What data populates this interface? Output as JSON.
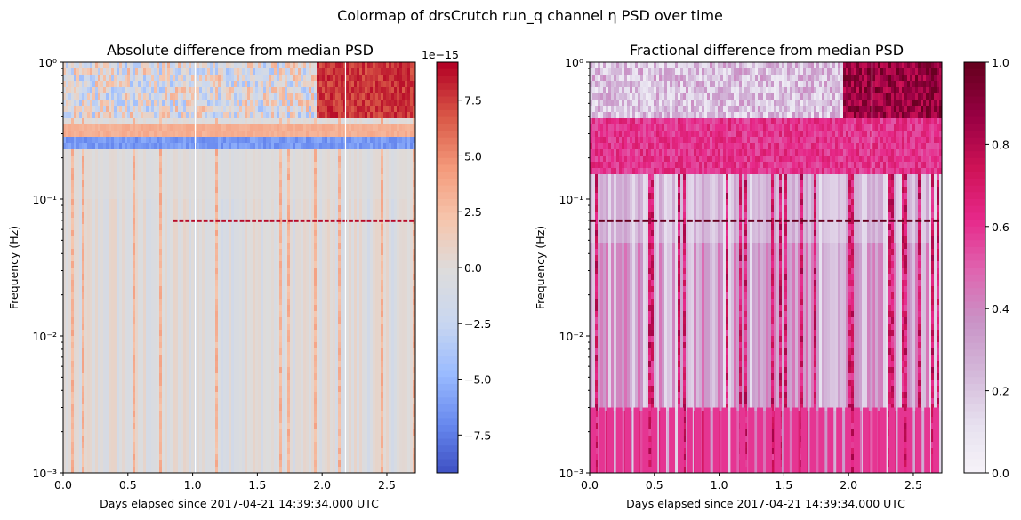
{
  "suptitle": "Colormap of drsCrutch run_q channel η PSD over time",
  "colors": {
    "coolwarm": [
      "#3b4cc0",
      "#6788ee",
      "#9abbff",
      "#c9d7f0",
      "#dddcdc",
      "#f6c6ad",
      "#f49a7b",
      "#d95847",
      "#b40426"
    ],
    "pubu_rd": [
      "#f7f4f9",
      "#e7e1ef",
      "#d4b9da",
      "#c994c7",
      "#df65b0",
      "#e7298a",
      "#ce1256",
      "#980043",
      "#67001f"
    ]
  },
  "chart_data": [
    {
      "type": "heatmap",
      "title": "Absolute difference from median PSD",
      "xlabel": "Days elapsed since 2017-04-21 14:39:34.000 UTC",
      "ylabel": "Frequency (Hz)",
      "xlim": [
        0,
        2.72
      ],
      "ylim": [
        0.001,
        1
      ],
      "yscale": "log",
      "x_ticks": [
        "0.0",
        "0.5",
        "1.0",
        "1.5",
        "2.0",
        "2.5"
      ],
      "y_ticks": [
        "10⁻³",
        "10⁻²",
        "10⁻¹",
        "10⁰"
      ],
      "colormap": "coolwarm",
      "colorbar": {
        "range": [
          -9.2e-15,
          9.2e-15
        ],
        "ticks": [
          "−7.5",
          "−5.0",
          "−2.5",
          "0.0",
          "2.5",
          "5.0",
          "7.5"
        ],
        "tick_values": [
          -7.5,
          -5.0,
          -2.5,
          0.0,
          2.5,
          5.0,
          7.5
        ],
        "offset_label": "1e−15"
      },
      "gaps_days": [
        1.02,
        2.18
      ],
      "features": [
        {
          "x_range": [
            1.95,
            2.72
          ],
          "f_range": [
            0.4,
            1.0
          ],
          "value": 9e-15
        },
        {
          "x_range": [
            0.0,
            2.72
          ],
          "f_range": [
            0.28,
            0.36
          ],
          "value": 4e-15
        },
        {
          "x_range": [
            0.0,
            2.72
          ],
          "f_range": [
            0.23,
            0.28
          ],
          "value": -7e-15
        },
        {
          "x_range": [
            0.85,
            2.72
          ],
          "f_range": [
            0.068,
            0.071
          ],
          "value": 9e-15
        }
      ]
    },
    {
      "type": "heatmap",
      "title": "Fractional difference from median PSD",
      "xlabel": "Days elapsed since 2017-04-21 14:39:34.000 UTC",
      "ylabel": "Frequency (Hz)",
      "xlim": [
        0,
        2.72
      ],
      "ylim": [
        0.001,
        1
      ],
      "yscale": "log",
      "x_ticks": [
        "0.0",
        "0.5",
        "1.0",
        "1.5",
        "2.0",
        "2.5"
      ],
      "y_ticks": [
        "10⁻³",
        "10⁻²",
        "10⁻¹",
        "10⁰"
      ],
      "colormap": "PuRd",
      "colorbar": {
        "range": [
          0.0,
          1.0
        ],
        "ticks": [
          "0.0",
          "0.2",
          "0.4",
          "0.6",
          "0.8",
          "1.0"
        ],
        "tick_values": [
          0.0,
          0.2,
          0.4,
          0.6,
          0.8,
          1.0
        ],
        "offset_label": ""
      },
      "gaps_days": [
        2.18
      ],
      "features": [
        {
          "x_range": [
            1.95,
            2.72
          ],
          "f_range": [
            0.4,
            1.0
          ],
          "value": 1.0
        },
        {
          "x_range": [
            0.0,
            2.72
          ],
          "f_range": [
            0.15,
            0.4
          ],
          "value": 0.7
        },
        {
          "x_range": [
            0.0,
            2.72
          ],
          "f_range": [
            0.068,
            0.071
          ],
          "value": 1.0
        },
        {
          "x_range": [
            0.0,
            2.72
          ],
          "f_range": [
            0.001,
            0.003
          ],
          "value": 0.6
        }
      ]
    }
  ]
}
